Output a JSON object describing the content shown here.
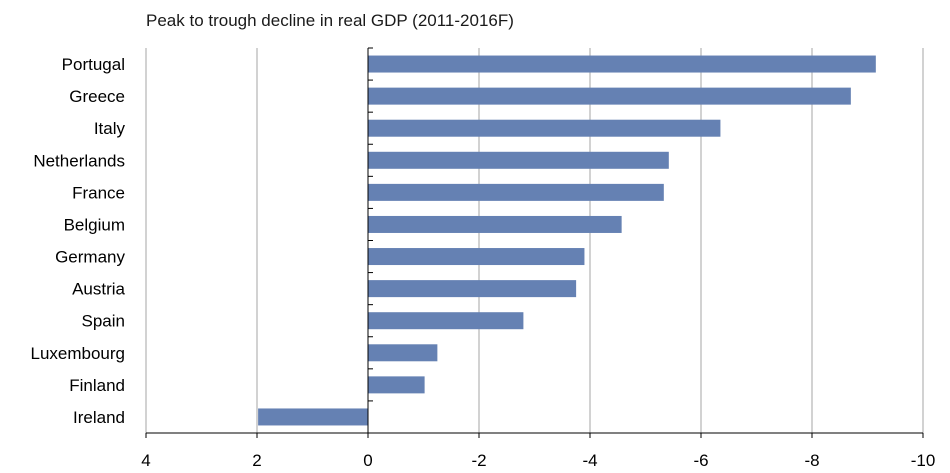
{
  "chart_data": {
    "type": "bar",
    "orientation": "horizontal",
    "title": "Peak to trough decline in real GDP (2011-2016F)",
    "categories": [
      "Portugal",
      "Greece",
      "Italy",
      "Netherlands",
      "France",
      "Belgium",
      "Germany",
      "Austria",
      "Spain",
      "Luxembourg",
      "Finland",
      "Ireland"
    ],
    "values": [
      -9.15,
      -8.7,
      -6.35,
      -5.42,
      -5.33,
      -4.57,
      -3.9,
      -3.75,
      -2.8,
      -1.25,
      -1.02,
      1.98
    ],
    "xlim": [
      4,
      -10
    ],
    "x_reversed": true,
    "xticks": [
      4,
      2,
      0,
      -2,
      -4,
      -6,
      -8,
      -10
    ],
    "xtick_labels": [
      "4",
      "2",
      "0",
      "-2",
      "-4",
      "-6",
      "-8",
      "-10"
    ],
    "xlabel": "",
    "ylabel": "",
    "grid": "vertical",
    "legend": "none",
    "bar_color": "#6581b3"
  }
}
